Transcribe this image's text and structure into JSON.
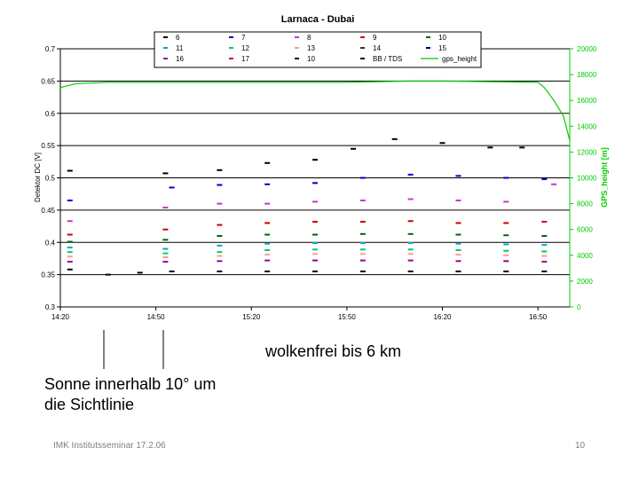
{
  "chart_data": {
    "type": "scatter",
    "title": "Larnaca - Dubai",
    "ylabel": "Detektor DC [V]",
    "y2label": "GPS_height [m]",
    "xlabel": "",
    "xlim": [
      "14:20",
      "17:00"
    ],
    "ylim": [
      0.3,
      0.7
    ],
    "y2lim": [
      0,
      20000
    ],
    "x_ticks": [
      "14:20",
      "14:50",
      "15:20",
      "15:50",
      "16:20",
      "16:50"
    ],
    "y_ticks": [
      "0.3",
      "0.35",
      "0.4",
      "0.45",
      "0.5",
      "0.55",
      "0.6",
      "0.65",
      "0.7"
    ],
    "y2_ticks": [
      "0",
      "2000",
      "4000",
      "6000",
      "8000",
      "10000",
      "12000",
      "14000",
      "16000",
      "18000",
      "20000"
    ],
    "grid": true,
    "legend_position": "top",
    "legend": [
      {
        "label": "6",
        "color": "#000000"
      },
      {
        "label": "7",
        "color": "#0000cc"
      },
      {
        "label": "8",
        "color": "#cc33cc"
      },
      {
        "label": "9",
        "color": "#cc0000"
      },
      {
        "label": "10",
        "color": "#006600"
      },
      {
        "label": "11",
        "color": "#00aacc"
      },
      {
        "label": "12",
        "color": "#00cc66"
      },
      {
        "label": "13",
        "color": "#ff9999"
      },
      {
        "label": "14",
        "color": "#333333"
      },
      {
        "label": "15",
        "color": "#000066"
      },
      {
        "label": "16",
        "color": "#990099"
      },
      {
        "label": "17",
        "color": "#cc0033"
      },
      {
        "label": "10",
        "color": "#000000"
      },
      {
        "label": "BB / TDS",
        "color": "#000000"
      },
      {
        "label": "gps_height",
        "color": "#00cc00"
      }
    ],
    "series": [
      {
        "name": "6",
        "color": "#000000",
        "x": [
          "14:23",
          "14:53",
          "15:10",
          "15:25",
          "15:40",
          "15:52",
          "16:05",
          "16:20",
          "16:35",
          "16:45"
        ],
        "values": [
          0.511,
          0.507,
          0.512,
          0.523,
          0.528,
          0.545,
          0.56,
          0.554,
          0.547,
          0.547
        ]
      },
      {
        "name": "7",
        "color": "#0000cc",
        "x": [
          "14:23",
          "14:55",
          "15:10",
          "15:25",
          "15:40",
          "15:55",
          "16:10",
          "16:25",
          "16:40",
          "16:52"
        ],
        "values": [
          0.465,
          0.485,
          0.489,
          0.49,
          0.492,
          0.5,
          0.505,
          0.503,
          0.5,
          0.498
        ]
      },
      {
        "name": "8",
        "color": "#cc33cc",
        "x": [
          "14:23",
          "14:53",
          "15:10",
          "15:25",
          "15:40",
          "15:55",
          "16:10",
          "16:25",
          "16:40",
          "16:55"
        ],
        "values": [
          0.433,
          0.454,
          0.46,
          0.46,
          0.463,
          0.465,
          0.467,
          0.465,
          0.463,
          0.49
        ]
      },
      {
        "name": "9",
        "color": "#cc0000",
        "x": [
          "14:23",
          "14:53",
          "15:10",
          "15:25",
          "15:40",
          "15:55",
          "16:10",
          "16:25",
          "16:40",
          "16:52"
        ],
        "values": [
          0.412,
          0.42,
          0.427,
          0.43,
          0.432,
          0.432,
          0.433,
          0.43,
          0.43,
          0.432
        ]
      },
      {
        "name": "10",
        "color": "#006600",
        "x": [
          "14:23",
          "14:53",
          "15:10",
          "15:25",
          "15:40",
          "15:55",
          "16:10",
          "16:25",
          "16:40",
          "16:52"
        ],
        "values": [
          0.401,
          0.404,
          0.41,
          0.412,
          0.412,
          0.413,
          0.413,
          0.412,
          0.411,
          0.41
        ]
      },
      {
        "name": "11",
        "color": "#00aacc",
        "x": [
          "14:23",
          "14:53",
          "15:10",
          "15:25",
          "15:40",
          "15:55",
          "16:10",
          "16:25",
          "16:40",
          "16:52"
        ],
        "values": [
          0.392,
          0.39,
          0.395,
          0.398,
          0.399,
          0.399,
          0.399,
          0.398,
          0.397,
          0.396
        ]
      },
      {
        "name": "12",
        "color": "#00cc66",
        "x": [
          "14:23",
          "14:53",
          "15:10",
          "15:25",
          "15:40",
          "15:55",
          "16:10",
          "16:25",
          "16:40",
          "16:52"
        ],
        "values": [
          0.385,
          0.383,
          0.385,
          0.388,
          0.389,
          0.389,
          0.389,
          0.388,
          0.387,
          0.386
        ]
      },
      {
        "name": "13",
        "color": "#ff9999",
        "x": [
          "14:23",
          "14:53",
          "15:10",
          "15:25",
          "15:40",
          "15:55",
          "16:10",
          "16:25",
          "16:40",
          "16:52"
        ],
        "values": [
          0.378,
          0.377,
          0.379,
          0.381,
          0.382,
          0.382,
          0.382,
          0.381,
          0.38,
          0.379
        ]
      },
      {
        "name": "16",
        "color": "#990099",
        "x": [
          "14:23",
          "14:53",
          "15:10",
          "15:25",
          "15:40",
          "15:55",
          "16:10",
          "16:25",
          "16:40",
          "16:52"
        ],
        "values": [
          0.37,
          0.37,
          0.371,
          0.372,
          0.372,
          0.372,
          0.372,
          0.371,
          0.371,
          0.37
        ]
      },
      {
        "name": "BB / TDS",
        "color": "#000000",
        "x": [
          "14:23",
          "14:35",
          "14:45",
          "14:55",
          "15:10",
          "15:25",
          "15:40",
          "15:55",
          "16:10",
          "16:25",
          "16:40",
          "16:52"
        ],
        "values": [
          0.358,
          0.35,
          0.353,
          0.355,
          0.355,
          0.355,
          0.355,
          0.355,
          0.355,
          0.355,
          0.355,
          0.355
        ]
      }
    ],
    "gps_height": {
      "name": "gps_height",
      "color": "#00cc00",
      "x": [
        "14:20",
        "14:25",
        "14:35",
        "14:50",
        "15:20",
        "15:50",
        "16:10",
        "16:20",
        "16:50",
        "16:52",
        "16:55",
        "16:58",
        "17:00"
      ],
      "values": [
        17000,
        17300,
        17400,
        17400,
        17400,
        17400,
        17500,
        17500,
        17400,
        17000,
        16000,
        14800,
        12900
      ]
    }
  },
  "annotations": {
    "clear_sky": "wolkenfrei bis 6 km",
    "sun_line1": "Sonne innerhalb 10° um",
    "sun_line2": "die Sichtlinie"
  },
  "footer": {
    "left": "IMK Institutsseminar  17.2.06",
    "right": "10"
  }
}
